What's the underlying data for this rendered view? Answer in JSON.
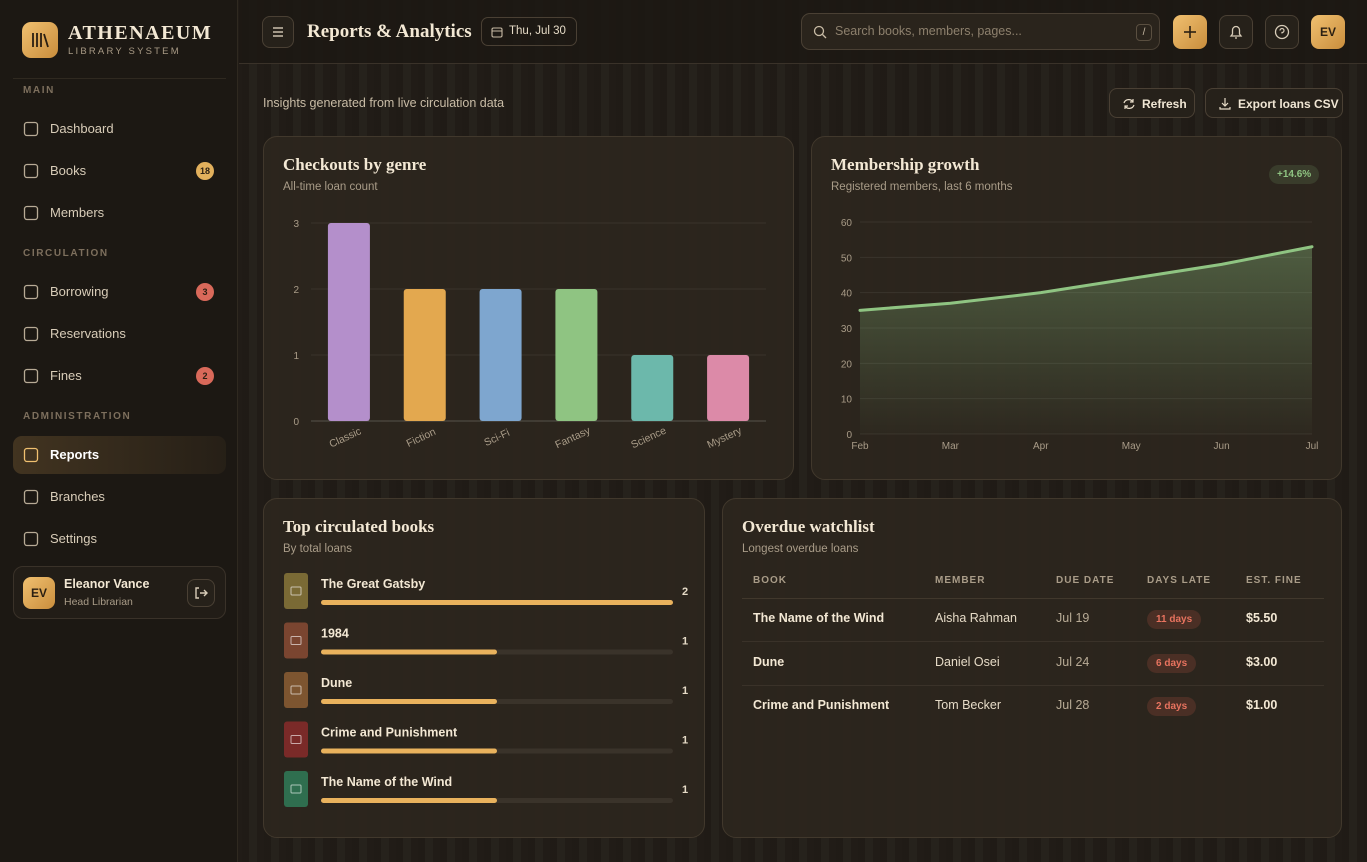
{
  "sidebar": {
    "brand": "ATHENAEUM",
    "tagline": "LIBRARY SYSTEM",
    "sections": [
      {
        "label": "MAIN",
        "items": [
          {
            "label": "Dashboard"
          },
          {
            "label": "Books",
            "badge": 18,
            "badge_color": "#e2b05c"
          },
          {
            "label": "Members"
          }
        ]
      },
      {
        "label": "CIRCULATION",
        "items": [
          {
            "label": "Borrowing",
            "badge": 3,
            "badge_color": "#d9695a"
          },
          {
            "label": "Reservations"
          },
          {
            "label": "Fines",
            "badge": 2,
            "badge_color": "#d9695a"
          }
        ]
      },
      {
        "label": "ADMINISTRATION",
        "items": [
          {
            "label": "Reports",
            "active": true
          },
          {
            "label": "Branches"
          },
          {
            "label": "Settings"
          }
        ]
      }
    ],
    "user": {
      "initials": "EV",
      "name": "Eleanor Vance",
      "role": "Head Librarian"
    }
  },
  "header": {
    "title": "Reports & Analytics",
    "date": "Thu, Jul 30",
    "search_placeholder": "Search books, members, pages...",
    "search_shortcut": "/",
    "avatar": "EV"
  },
  "toolbar": {
    "note": "Insights generated from live circulation data",
    "buttons": [
      "Refresh",
      "Export loans CSV"
    ]
  },
  "chart_data": [
    {
      "type": "bar",
      "title": "Checkouts by genre",
      "subtitle": "All-time loan count",
      "categories": [
        "Classic",
        "Fiction",
        "Sci-Fi",
        "Fantasy",
        "Science",
        "Mystery"
      ],
      "values": [
        3,
        2,
        2,
        2,
        1,
        1
      ],
      "colors": [
        "#b48fcb",
        "#e3a84f",
        "#7ea6cf",
        "#8fc482",
        "#6cb8ab",
        "#dc8aa8"
      ],
      "ylim": [
        0,
        3
      ],
      "yticks": [
        0,
        1,
        2,
        3
      ],
      "grid": true
    },
    {
      "type": "area",
      "title": "Membership growth",
      "subtitle": "Registered members, last 6 months",
      "badge": "+14.6%",
      "categories": [
        "Feb",
        "Mar",
        "Apr",
        "May",
        "Jun",
        "Jul"
      ],
      "values": [
        35,
        37,
        40,
        44,
        48,
        53
      ],
      "color": "#8fc482",
      "ylim": [
        0,
        60
      ],
      "yticks": [
        0,
        10,
        20,
        30,
        40,
        50,
        60
      ],
      "grid": true
    },
    {
      "type": "hbar",
      "title": "Top circulated books",
      "subtitle": "By total loans",
      "categories": [
        "The Great Gatsby",
        "1984",
        "Dune",
        "Crime and Punishment",
        "The Name of the Wind"
      ],
      "values": [
        2,
        1,
        1,
        1,
        1
      ],
      "colors": [
        "#7a6a35",
        "#7a4530",
        "#7d5530",
        "#7a2a28",
        "#2f6e4f"
      ],
      "color": "#e9b25d",
      "xlim": [
        0,
        2
      ]
    }
  ],
  "overdue": {
    "title": "Overdue watchlist",
    "subtitle": "Longest overdue loans",
    "columns": [
      "BOOK",
      "MEMBER",
      "DUE DATE",
      "DAYS LATE",
      "EST. FINE"
    ],
    "rows": [
      [
        "The Name of the Wind",
        "Aisha Rahman",
        "Jul 19",
        "11 days",
        "$5.50"
      ],
      [
        "Dune",
        "Daniel Osei",
        "Jul 24",
        "6 days",
        "$3.00"
      ],
      [
        "Crime and Punishment",
        "Tom Becker",
        "Jul 28",
        "2 days",
        "$1.00"
      ]
    ]
  }
}
